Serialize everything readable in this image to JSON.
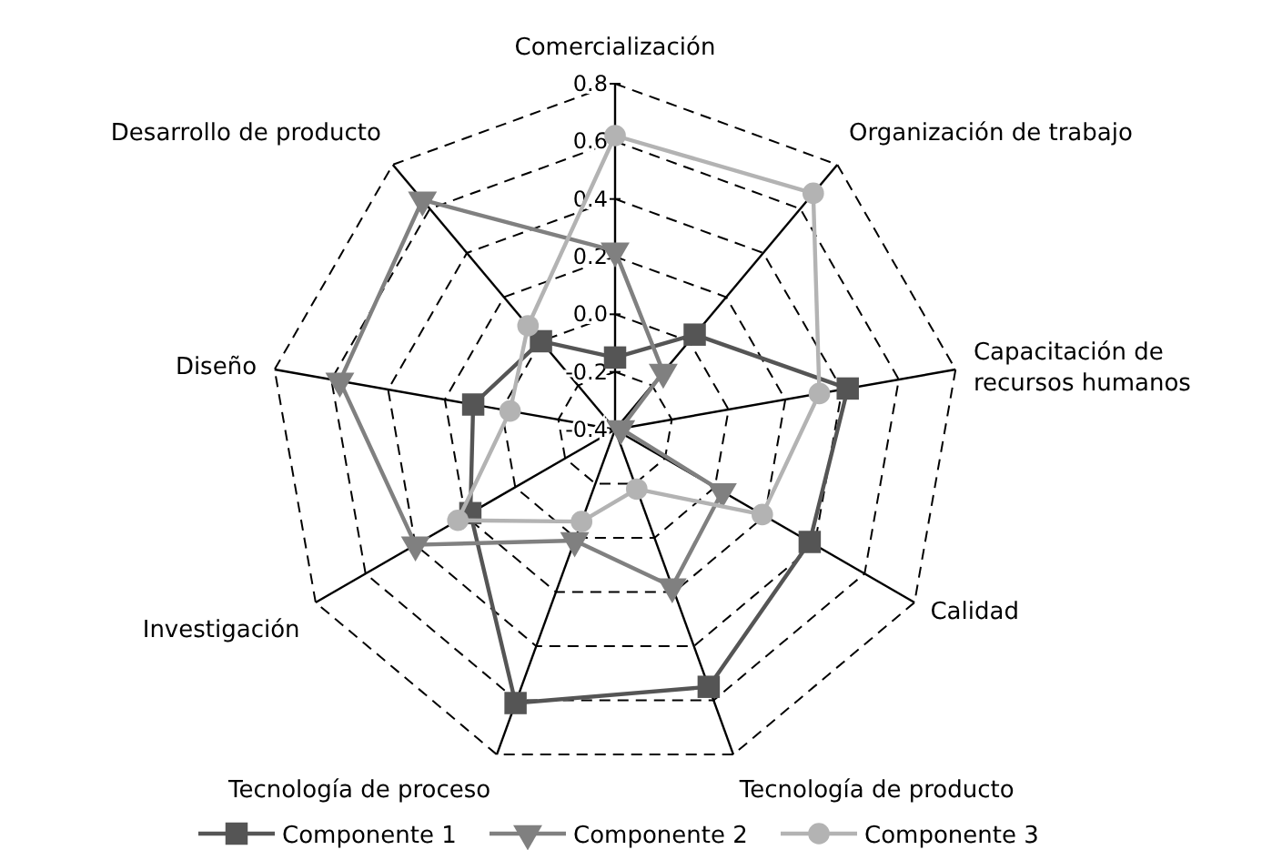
{
  "chart_data": {
    "type": "radar",
    "categories": [
      "Comercialización",
      "Organización de trabajo",
      "Capacitación de recursos humanos",
      "Calidad",
      "Tecnología de producto",
      "Tecnología de proceso",
      "Investigación",
      "Diseño",
      "Desarrollo de producto"
    ],
    "series": [
      {
        "name": "Componente 1",
        "color": "#555555",
        "marker": "square",
        "values": [
          -0.15,
          0.03,
          0.42,
          0.38,
          0.55,
          0.61,
          0.18,
          0.1,
          0.0
        ]
      },
      {
        "name": "Componente 2",
        "color": "#808080",
        "marker": "triangle",
        "values": [
          0.22,
          -0.14,
          -0.38,
          0.03,
          0.18,
          0.01,
          0.4,
          0.57,
          0.64
        ]
      },
      {
        "name": "Componente 3",
        "color": "#b3b3b3",
        "marker": "circle",
        "values": [
          0.62,
          0.67,
          0.32,
          0.19,
          -0.18,
          -0.06,
          0.23,
          -0.03,
          0.07
        ]
      }
    ],
    "ylim": [
      -0.4,
      0.8
    ],
    "yticks": [
      -0.4,
      -0.2,
      {
        "value": 0,
        "label": "0.0"
      },
      0.2,
      0.4,
      0.6,
      0.8
    ],
    "grid": true,
    "legend": "bottom"
  }
}
